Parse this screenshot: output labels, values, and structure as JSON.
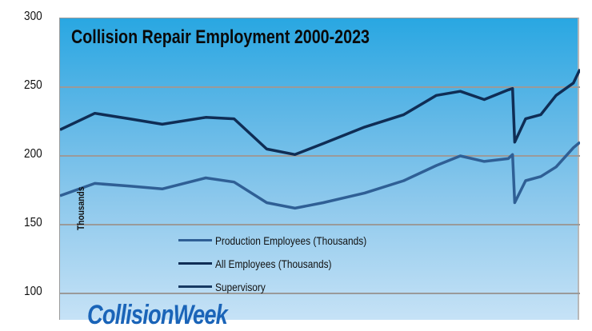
{
  "chart_data": {
    "type": "line",
    "title": "Collision Repair Employment 2000-2023",
    "xlabel": "",
    "ylabel": "Thousands",
    "ylim": [
      100,
      300
    ],
    "yticks": [
      100,
      150,
      200,
      250,
      300
    ],
    "xlim": [
      2000,
      2023.9
    ],
    "grid": true,
    "legend_position": "lower-left inside",
    "x": [
      2000.0,
      2001.6,
      2003.2,
      2004.7,
      2006.7,
      2008.0,
      2009.5,
      2010.8,
      2012.1,
      2014.0,
      2015.8,
      2017.3,
      2018.4,
      2019.5,
      2020.6,
      2020.8,
      2020.9,
      2021.4,
      2022.1,
      2022.8,
      2023.6,
      2023.9
    ],
    "series": [
      {
        "name": "Production Employees (Thousands)",
        "color": "#2f5f95",
        "values": [
          171,
          180,
          178,
          176,
          184,
          181,
          166,
          162,
          166,
          173,
          182,
          193,
          200,
          196,
          198,
          201,
          166,
          182,
          185,
          192,
          206,
          210
        ]
      },
      {
        "name": "All Employees (Thousands)",
        "color": "#0f2d55",
        "values": [
          219,
          231,
          227,
          223,
          228,
          227,
          205,
          201,
          209,
          221,
          230,
          244,
          247,
          241,
          248,
          249,
          210,
          227,
          230,
          244,
          253,
          263
        ]
      },
      {
        "name": "Supervisory",
        "color": "#173a63",
        "values": []
      }
    ],
    "brand": "CollisionWeek"
  },
  "labels": {
    "ytick_300": "300",
    "ytick_250": "250",
    "ytick_200": "200",
    "ytick_150": "150",
    "ytick_100": "100"
  }
}
